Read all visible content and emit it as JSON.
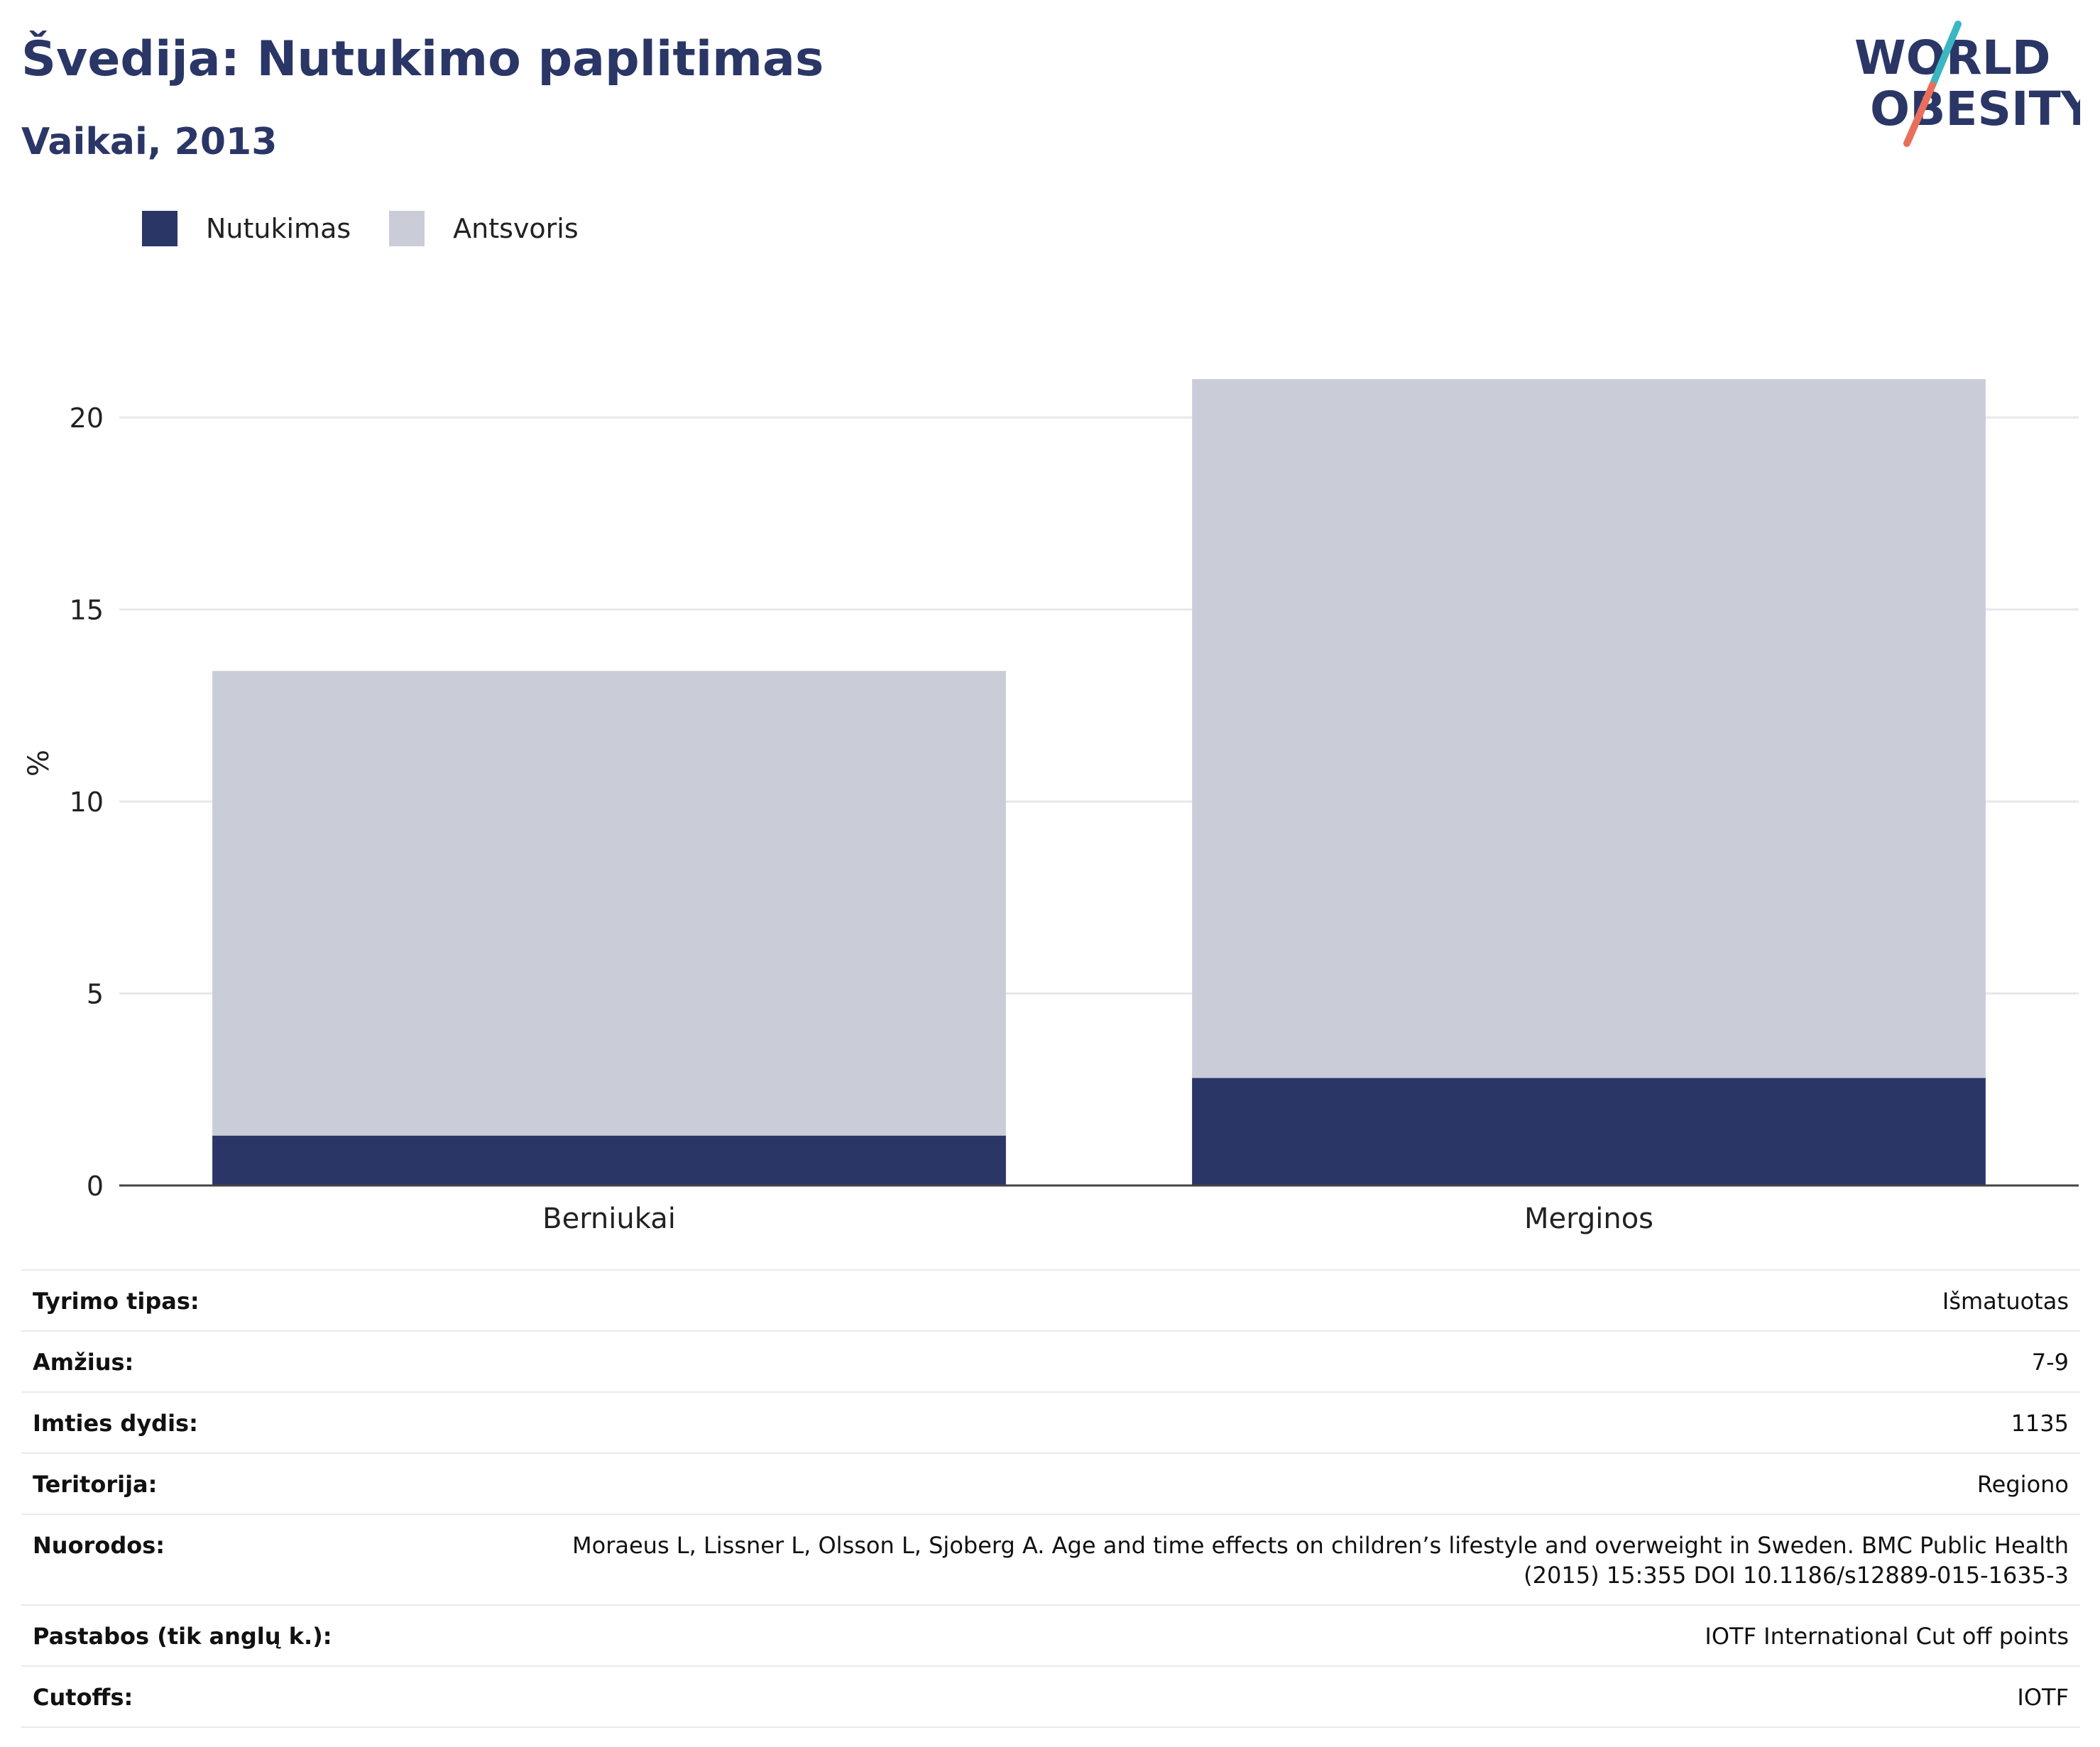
{
  "header": {
    "title": "Švedija: Nutukimo paplitimas",
    "subtitle": "Vaikai, 2013"
  },
  "logo": {
    "line1": "WORLD",
    "line2": "OBESITY",
    "colors": {
      "text": "#2a3666",
      "slash_top": "#3bb6c3",
      "slash_bottom": "#e8705a"
    }
  },
  "legend": [
    {
      "label": "Nutukimas",
      "color": "#2a3666"
    },
    {
      "label": "Antsvoris",
      "color": "#cacdd8"
    }
  ],
  "chart_data": {
    "type": "bar",
    "stacked": true,
    "categories": [
      "Berniukai",
      "Merginos"
    ],
    "series": [
      {
        "name": "Nutukimas",
        "color": "#2a3666",
        "values": [
          1.3,
          2.8
        ]
      },
      {
        "name": "Antsvoris",
        "color": "#cacdd8",
        "values": [
          12.1,
          18.2
        ]
      }
    ],
    "ylabel": "%",
    "xlabel": "",
    "ylim": [
      0,
      22
    ],
    "yticks": [
      0,
      5,
      10,
      15,
      20
    ],
    "grid": true,
    "legend_position": "top-left"
  },
  "details": [
    {
      "key": "Tyrimo tipas:",
      "value": "Išmatuotas"
    },
    {
      "key": "Amžius:",
      "value": "7-9"
    },
    {
      "key": "Imties dydis:",
      "value": "1135"
    },
    {
      "key": "Teritorija:",
      "value": "Regiono"
    },
    {
      "key": "Nuorodos:",
      "value": "Moraeus L, Lissner L, Olsson L, Sjoberg A. Age and time effects on children’s lifestyle and overweight in Sweden. BMC Public Health (2015) 15:355 DOI 10.1186/s12889-015-1635-3"
    },
    {
      "key": "Pastabos (tik anglų k.):",
      "value": "IOTF International Cut off points"
    },
    {
      "key": "Cutoffs:",
      "value": "IOTF"
    }
  ]
}
